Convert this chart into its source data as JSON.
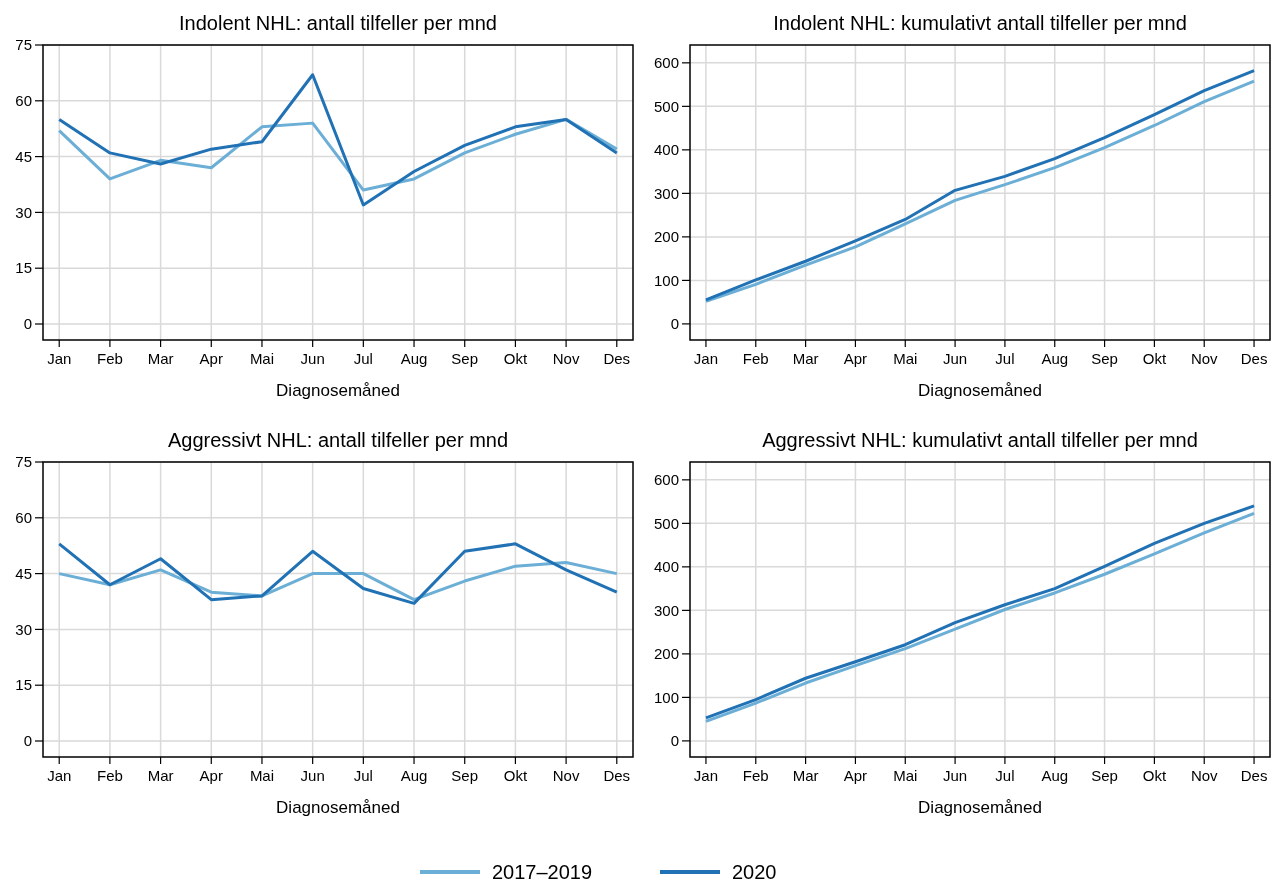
{
  "chart_data": [
    {
      "type": "line",
      "title": "Indolent NHL: antall tilfeller per mnd",
      "xlabel": "Diagnosemåned",
      "categories": [
        "Jan",
        "Feb",
        "Mar",
        "Apr",
        "Mai",
        "Jun",
        "Jul",
        "Aug",
        "Sep",
        "Okt",
        "Nov",
        "Des"
      ],
      "ylim": [
        -4.3,
        75
      ],
      "yticks": [
        0,
        15,
        30,
        45,
        60,
        75
      ],
      "grid": true,
      "series": [
        {
          "color": "#6baed6",
          "values": [
            52,
            39,
            44,
            42,
            53,
            54,
            36,
            39,
            46,
            51,
            55,
            47
          ]
        },
        {
          "color": "#2171b5",
          "values": [
            55,
            46,
            43,
            47,
            49,
            67,
            32,
            41,
            48,
            53,
            55,
            46
          ]
        }
      ]
    },
    {
      "type": "line",
      "title": "Indolent NHL: kumulativt antall tilfeller per mnd",
      "xlabel": "Diagnosemåned",
      "categories": [
        "Jan",
        "Feb",
        "Mar",
        "Apr",
        "Mai",
        "Jun",
        "Jul",
        "Aug",
        "Sep",
        "Okt",
        "Nov",
        "Des"
      ],
      "ylim": [
        -37,
        641
      ],
      "yticks": [
        0,
        100,
        200,
        300,
        400,
        500,
        600
      ],
      "grid": true,
      "series": [
        {
          "color": "#6baed6",
          "values": [
            52,
            91,
            135,
            177,
            230,
            284,
            320,
            359,
            405,
            456,
            511,
            558
          ]
        },
        {
          "color": "#2171b5",
          "values": [
            55,
            101,
            144,
            191,
            240,
            307,
            339,
            380,
            428,
            481,
            536,
            582
          ]
        }
      ]
    },
    {
      "type": "line",
      "title": "Aggressivt NHL: antall tilfeller per mnd",
      "xlabel": "Diagnosemåned",
      "categories": [
        "Jan",
        "Feb",
        "Mar",
        "Apr",
        "Mai",
        "Jun",
        "Jul",
        "Aug",
        "Sep",
        "Okt",
        "Nov",
        "Des"
      ],
      "ylim": [
        -4.3,
        75
      ],
      "yticks": [
        0,
        15,
        30,
        45,
        60,
        75
      ],
      "grid": true,
      "series": [
        {
          "color": "#6baed6",
          "values": [
            45,
            42,
            46,
            40,
            39,
            45,
            45,
            38,
            43,
            47,
            48,
            45
          ]
        },
        {
          "color": "#2171b5",
          "values": [
            53,
            42,
            49,
            38,
            39,
            51,
            41,
            37,
            51,
            53,
            46,
            40
          ]
        }
      ]
    },
    {
      "type": "line",
      "title": "Aggressivt NHL: kumulativt antall tilfeller per mnd",
      "xlabel": "Diagnosemåned",
      "categories": [
        "Jan",
        "Feb",
        "Mar",
        "Apr",
        "Mai",
        "Jun",
        "Jul",
        "Aug",
        "Sep",
        "Okt",
        "Nov",
        "Des"
      ],
      "ylim": [
        -37,
        641
      ],
      "yticks": [
        0,
        100,
        200,
        300,
        400,
        500,
        600
      ],
      "grid": true,
      "legend": "bottom",
      "series": [
        {
          "name": "2017–2019",
          "color": "#6baed6",
          "values": [
            45,
            87,
            133,
            173,
            212,
            257,
            302,
            340,
            383,
            430,
            478,
            523
          ]
        },
        {
          "name": "2020",
          "color": "#2171b5",
          "values": [
            53,
            95,
            144,
            182,
            221,
            272,
            313,
            350,
            401,
            454,
            500,
            540
          ]
        }
      ]
    }
  ]
}
